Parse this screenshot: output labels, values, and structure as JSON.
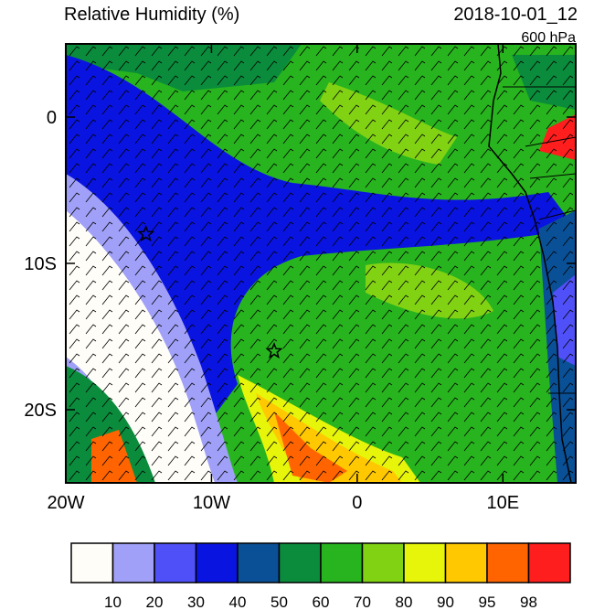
{
  "header": {
    "title": "Relative Humidity (%)",
    "date": "2018-10-01_12",
    "level": "600 hPa"
  },
  "map": {
    "lon_range": [
      -20,
      15
    ],
    "lat_range": [
      -25,
      5
    ],
    "lon_ticks": [
      {
        "value": -20,
        "label": "20W"
      },
      {
        "value": -10,
        "label": "10W"
      },
      {
        "value": 0,
        "label": "0"
      },
      {
        "value": 10,
        "label": "10E"
      }
    ],
    "lat_ticks": [
      {
        "value": 0,
        "label": "0"
      },
      {
        "value": -10,
        "label": "10S"
      },
      {
        "value": -20,
        "label": "20S"
      }
    ],
    "markers": [
      {
        "lon": -14.5,
        "lat": -8
      },
      {
        "lon": -5.7,
        "lat": -16
      }
    ]
  },
  "colorbar": {
    "levels": [
      10,
      20,
      30,
      40,
      50,
      60,
      70,
      80,
      90,
      95,
      98
    ],
    "colors": [
      "#fffdf8",
      "#a0a0f8",
      "#5050f8",
      "#0a14e0",
      "#0a5096",
      "#0a8c3c",
      "#28b41e",
      "#82d214",
      "#e6f50a",
      "#ffc800",
      "#ff6400",
      "#ff1e1e"
    ]
  }
}
